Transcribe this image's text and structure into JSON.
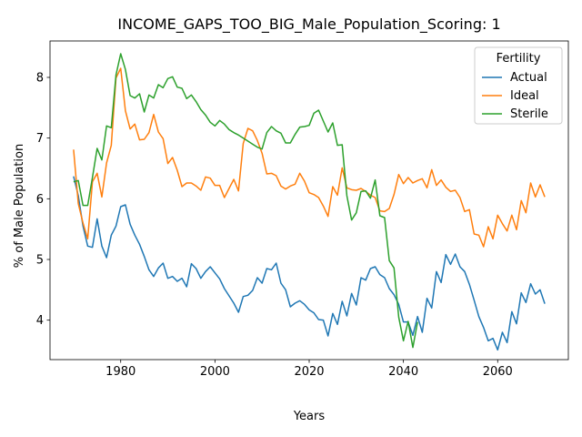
{
  "chart_data": {
    "type": "line",
    "title": "INCOME_GAPS_TOO_BIG_Male_Population_Scoring: 1",
    "xlabel": "Years",
    "ylabel": "% of Male Population",
    "xlim": [
      1965,
      2075
    ],
    "ylim": [
      3.35,
      8.6
    ],
    "xticks": [
      1980,
      2000,
      2020,
      2040,
      2060
    ],
    "yticks": [
      4,
      5,
      6,
      7,
      8
    ],
    "grid": false,
    "legend": {
      "title": "Fertility",
      "position": "upper right"
    },
    "x": [
      1970,
      1971,
      1972,
      1973,
      1974,
      1975,
      1976,
      1977,
      1978,
      1979,
      1980,
      1981,
      1982,
      1983,
      1984,
      1985,
      1986,
      1987,
      1988,
      1989,
      1990,
      1991,
      1992,
      1993,
      1994,
      1995,
      1996,
      1997,
      1998,
      1999,
      2000,
      2001,
      2002,
      2003,
      2004,
      2005,
      2006,
      2007,
      2008,
      2009,
      2010,
      2011,
      2012,
      2013,
      2014,
      2015,
      2016,
      2017,
      2018,
      2019,
      2020,
      2021,
      2022,
      2023,
      2024,
      2025,
      2026,
      2027,
      2028,
      2029,
      2030,
      2031,
      2032,
      2033,
      2034,
      2035,
      2036,
      2037,
      2038,
      2039,
      2040,
      2041,
      2042,
      2043,
      2044,
      2045,
      2046,
      2047,
      2048,
      2049,
      2050,
      2051,
      2052,
      2053,
      2054,
      2055,
      2056,
      2057,
      2058,
      2059,
      2060,
      2061,
      2062,
      2063,
      2064,
      2065,
      2066,
      2067,
      2068,
      2069,
      2070
    ],
    "series": [
      {
        "name": "Actual",
        "color": "#1f77b4",
        "values": [
          6.37,
          6.05,
          5.55,
          5.22,
          5.2,
          5.67,
          5.22,
          5.03,
          5.4,
          5.55,
          5.87,
          5.9,
          5.58,
          5.4,
          5.25,
          5.05,
          4.83,
          4.72,
          4.86,
          4.94,
          4.69,
          4.72,
          4.64,
          4.69,
          4.55,
          4.93,
          4.85,
          4.69,
          4.8,
          4.88,
          4.78,
          4.68,
          4.52,
          4.4,
          4.28,
          4.13,
          4.39,
          4.41,
          4.49,
          4.7,
          4.61,
          4.85,
          4.83,
          4.94,
          4.61,
          4.5,
          4.22,
          4.28,
          4.32,
          4.26,
          4.17,
          4.12,
          4.01,
          4.0,
          3.74,
          4.11,
          3.93,
          4.31,
          4.07,
          4.44,
          4.25,
          4.7,
          4.66,
          4.85,
          4.88,
          4.75,
          4.7,
          4.52,
          4.42,
          4.26,
          3.97,
          3.97,
          3.75,
          4.06,
          3.8,
          4.36,
          4.2,
          4.8,
          4.62,
          5.08,
          4.92,
          5.09,
          4.88,
          4.8,
          4.59,
          4.33,
          4.06,
          3.88,
          3.66,
          3.7,
          3.51,
          3.8,
          3.63,
          4.14,
          3.94,
          4.45,
          4.29,
          4.6,
          4.43,
          4.5,
          4.27
        ]
      },
      {
        "name": "Ideal",
        "color": "#ff7f0e",
        "values": [
          6.81,
          5.92,
          5.6,
          5.34,
          6.28,
          6.42,
          6.03,
          6.59,
          6.88,
          7.99,
          8.15,
          7.45,
          7.15,
          7.23,
          6.97,
          6.98,
          7.09,
          7.39,
          7.1,
          6.99,
          6.58,
          6.68,
          6.47,
          6.2,
          6.26,
          6.26,
          6.21,
          6.14,
          6.36,
          6.34,
          6.22,
          6.22,
          6.02,
          6.17,
          6.32,
          6.13,
          6.91,
          7.16,
          7.12,
          6.96,
          6.75,
          6.41,
          6.42,
          6.38,
          6.21,
          6.16,
          6.21,
          6.24,
          6.42,
          6.29,
          6.1,
          6.07,
          6.02,
          5.88,
          5.71,
          6.2,
          6.06,
          6.51,
          6.18,
          6.15,
          6.14,
          6.17,
          6.12,
          6.06,
          6.02,
          5.8,
          5.79,
          5.84,
          6.07,
          6.4,
          6.25,
          6.35,
          6.26,
          6.3,
          6.33,
          6.18,
          6.48,
          6.22,
          6.31,
          6.19,
          6.12,
          6.14,
          6.02,
          5.79,
          5.82,
          5.42,
          5.4,
          5.21,
          5.54,
          5.34,
          5.73,
          5.59,
          5.47,
          5.73,
          5.49,
          5.97,
          5.77,
          6.26,
          6.03,
          6.23,
          6.03
        ]
      },
      {
        "name": "Sterile",
        "color": "#2ca02c",
        "values": [
          6.28,
          6.3,
          5.89,
          5.89,
          6.35,
          6.83,
          6.64,
          7.2,
          7.17,
          8.04,
          8.39,
          8.13,
          7.7,
          7.66,
          7.73,
          7.43,
          7.71,
          7.66,
          7.88,
          7.83,
          7.98,
          8.01,
          7.84,
          7.82,
          7.65,
          7.71,
          7.6,
          7.47,
          7.38,
          7.26,
          7.2,
          7.29,
          7.23,
          7.14,
          7.09,
          7.05,
          7.0,
          6.95,
          6.9,
          6.85,
          6.82,
          7.09,
          7.19,
          7.12,
          7.08,
          6.92,
          6.92,
          7.06,
          7.18,
          7.19,
          7.21,
          7.41,
          7.46,
          7.28,
          7.1,
          7.25,
          6.88,
          6.89,
          6.05,
          5.65,
          5.77,
          6.12,
          6.13,
          6.01,
          6.31,
          5.72,
          5.69,
          4.98,
          4.86,
          4.05,
          3.66,
          3.98,
          3.55,
          3.97,
          null,
          null,
          null,
          null,
          null,
          null,
          null,
          null,
          null,
          null,
          null,
          null,
          null,
          null,
          null,
          null,
          null,
          null,
          null,
          null,
          null,
          null,
          null,
          null,
          null,
          null,
          null
        ]
      }
    ]
  }
}
